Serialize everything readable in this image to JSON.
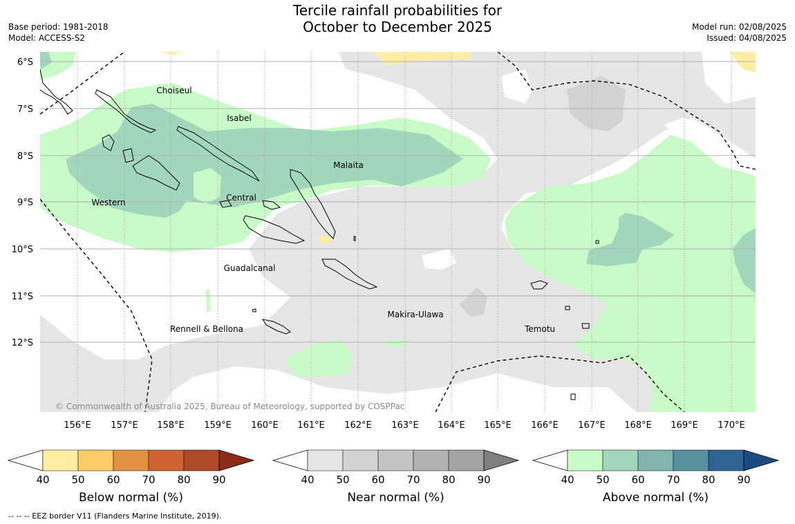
{
  "title_line1": "Tercile rainfall probabilities for",
  "title_line2": "October to December 2025",
  "meta_left": [
    "Base period: 1981-2018",
    "Model: ACCESS-S2"
  ],
  "meta_right": [
    "Model run: 02/08/2025",
    "Issued: 04/08/2025"
  ],
  "lat_labels": [
    "6°S",
    "7°S",
    "8°S",
    "9°S",
    "10°S",
    "11°S",
    "12°S"
  ],
  "lon_labels": [
    "156°E",
    "157°E",
    "158°E",
    "159°E",
    "160°E",
    "161°E",
    "162°E",
    "163°E",
    "164°E",
    "165°E",
    "166°E",
    "167°E",
    "168°E",
    "169°E",
    "170°E"
  ],
  "places": [
    {
      "name": "Choiseul"
    },
    {
      "name": "Isabel"
    },
    {
      "name": "Malaita"
    },
    {
      "name": "Western"
    },
    {
      "name": "Central"
    },
    {
      "name": "Guadalcanal"
    },
    {
      "name": "Makira-Ulawa"
    },
    {
      "name": "Rennell & Bellona"
    },
    {
      "name": "Temotu"
    }
  ],
  "copyright": "© Commonwealth of Australia 2025, Bureau of Meteorology, supported by COSPPac",
  "colorbars": [
    {
      "title": "Below normal (%)",
      "ticks": [
        "40",
        "50",
        "60",
        "70",
        "80",
        "90"
      ],
      "colors": [
        "#ffffff",
        "#ffeea3",
        "#fecb65",
        "#e09345",
        "#cf6232",
        "#ae4a26",
        "#8a2c18"
      ]
    },
    {
      "title": "Near normal (%)",
      "ticks": [
        "40",
        "50",
        "60",
        "70",
        "80",
        "90"
      ],
      "colors": [
        "#ffffff",
        "#e6e6e6",
        "#d3d3d3",
        "#c5c5c5",
        "#b3b3b3",
        "#a3a3a3",
        "#808080"
      ]
    },
    {
      "title": "Above normal (%)",
      "ticks": [
        "40",
        "50",
        "60",
        "70",
        "80",
        "90"
      ],
      "colors": [
        "#ffffff",
        "#c9fbc9",
        "#a3d7bb",
        "#82b5ae",
        "#5a919f",
        "#2e6393",
        "#1c4b82"
      ]
    }
  ],
  "footnote": "-- -- -- EEZ border V11 (Flanders Marine Institute, 2019)."
}
